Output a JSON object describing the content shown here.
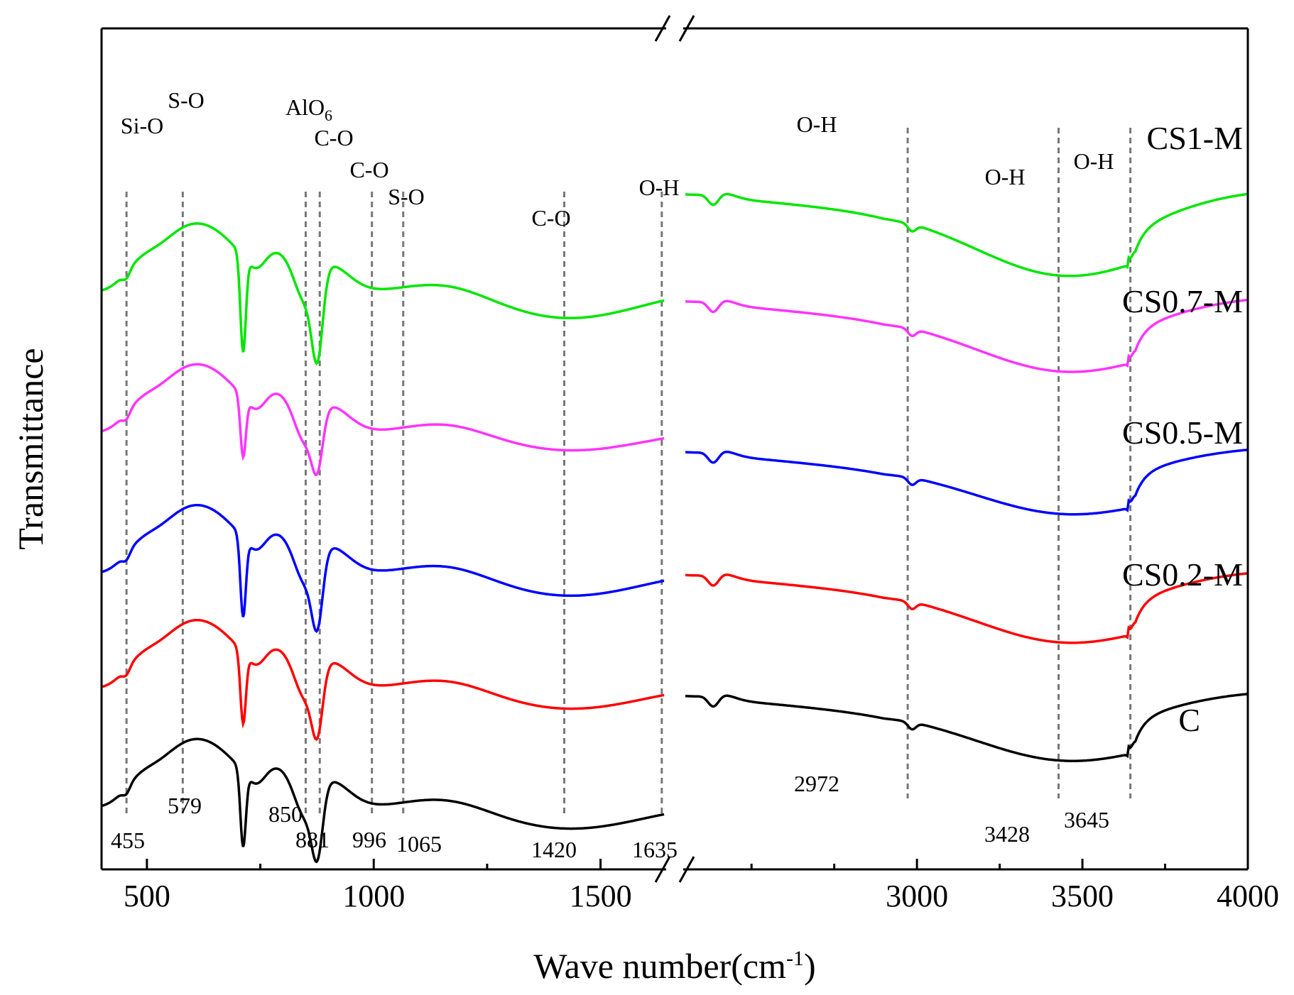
{
  "chart_data": {
    "type": "line",
    "title": "",
    "xlabel_main": "Wave number(cm",
    "xlabel_sup": "-1",
    "xlabel_close": ")",
    "ylabel": "Transmittance",
    "axis_break": true,
    "xlim_left": [
      400,
      1640
    ],
    "xlim_right": [
      2300,
      4000
    ],
    "xticks": [
      {
        "value": 500,
        "label": "500"
      },
      {
        "value": 1000,
        "label": "1000"
      },
      {
        "value": 1500,
        "label": "1500"
      },
      {
        "value": 3000,
        "label": "3000"
      },
      {
        "value": 3500,
        "label": "3500"
      },
      {
        "value": 4000,
        "label": "4000"
      }
    ],
    "minor_xticks": [
      750,
      1250,
      2500,
      2750,
      3250,
      3750
    ],
    "series": [
      {
        "name": "CS1-M",
        "color": "#00e600",
        "offset": 4,
        "amp": 1.15,
        "ohscale": 1.0
      },
      {
        "name": "CS0.7-M",
        "color": "#ff33ff",
        "offset": 3,
        "amp": 0.72,
        "ohscale": 0.8
      },
      {
        "name": "CS0.5-M",
        "color": "#0000ff",
        "offset": 2,
        "amp": 0.95,
        "ohscale": 0.65
      },
      {
        "name": "CS0.2-M",
        "color": "#ff0000",
        "offset": 1,
        "amp": 0.85,
        "ohscale": 0.75
      },
      {
        "name": "C",
        "color": "#000000",
        "offset": 0,
        "amp": 0.9,
        "ohscale": 0.7
      }
    ],
    "reference_lines": [
      {
        "x": 455,
        "label": "455",
        "bond": "Si-O"
      },
      {
        "x": 579,
        "label": "579",
        "bond": "S-O"
      },
      {
        "x": 850,
        "label": "850",
        "bond": "AlO",
        "bond_sub": "6"
      },
      {
        "x": 881,
        "label": "881",
        "bond": "C-O"
      },
      {
        "x": 996,
        "label": "996",
        "bond": "C-O"
      },
      {
        "x": 1065,
        "label": "1065",
        "bond": "S-O"
      },
      {
        "x": 1420,
        "label": "1420",
        "bond": "C-O"
      },
      {
        "x": 1635,
        "label": "1635",
        "bond": "O-H"
      },
      {
        "x": 2972,
        "label": "2972",
        "bond": "O-H"
      },
      {
        "x": 3428,
        "label": "3428",
        "bond": "O-H"
      },
      {
        "x": 3645,
        "label": "3645",
        "bond": "O-H"
      }
    ]
  }
}
